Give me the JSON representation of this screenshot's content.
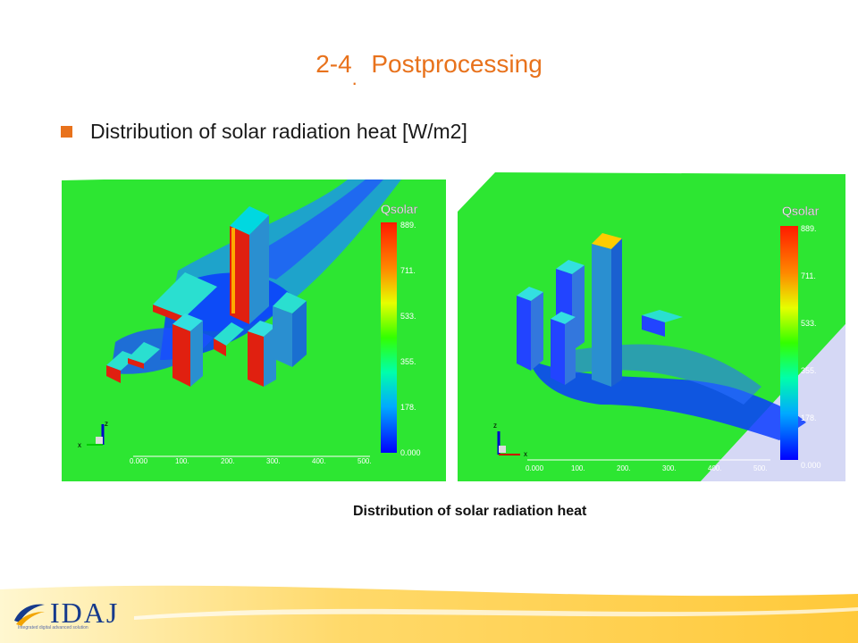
{
  "slide": {
    "title_prefix": "2-4",
    "title_dot": ".",
    "title_main": "Postprocessing",
    "bullet": "Distribution of solar radiation heat [W/m2]",
    "caption": "Distribution of solar radiation heat"
  },
  "colors": {
    "accent": "#e8721c",
    "field_green": "#2de632",
    "logo_blue": "#163a8c"
  },
  "left_view": {
    "legend_title": "Qsolar",
    "legend_ticks": [
      "889.",
      "711.",
      "533.",
      "355.",
      "178.",
      "0.000"
    ],
    "axis_ticks": [
      "0.000",
      "100.",
      "200.",
      "300.",
      "400.",
      "500."
    ],
    "triad_labels": [
      "z",
      "x"
    ]
  },
  "right_view": {
    "legend_title": "Qsolar",
    "legend_ticks": [
      "889.",
      "711.",
      "533.",
      "355.",
      "178.",
      "0.000"
    ],
    "axis_ticks": [
      "0.000",
      "100.",
      "200.",
      "300.",
      "400.",
      "500."
    ],
    "triad_labels": [
      "z",
      "x"
    ]
  },
  "logo": {
    "name": "IDAJ",
    "tagline": "Integrated digital advanced solution"
  }
}
